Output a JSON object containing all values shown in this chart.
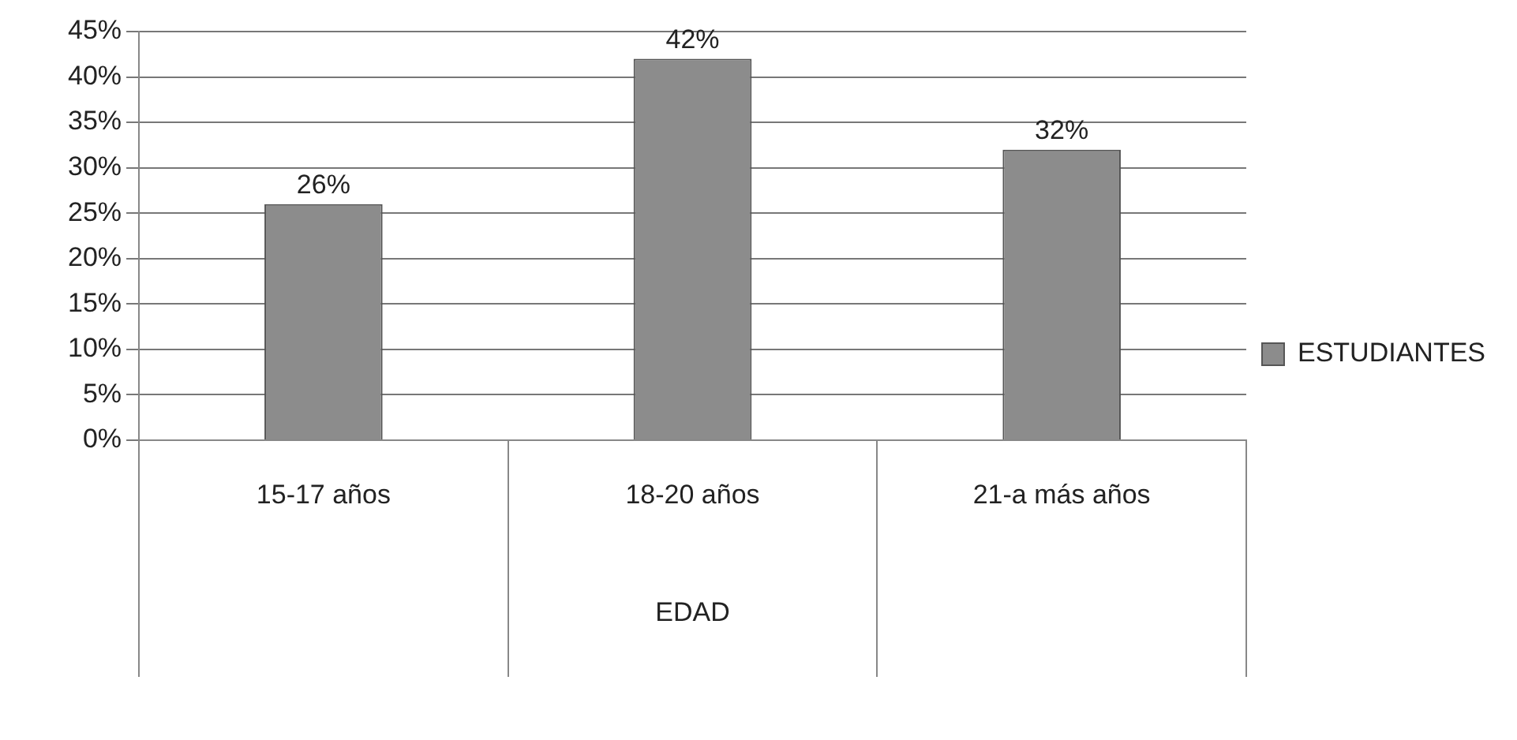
{
  "chart_data": {
    "type": "bar",
    "xlabel": "EDAD",
    "categories": [
      "15-17 años",
      "18-20 años",
      "21-a más años"
    ],
    "series": [
      {
        "name": "ESTUDIANTES",
        "color": "#8c8c8c",
        "values": [
          26,
          42,
          32
        ],
        "value_labels": [
          "26%",
          "42%",
          "32%"
        ]
      }
    ],
    "ylim": [
      0,
      45
    ],
    "yticks": [
      {
        "value": 0,
        "label": "0%"
      },
      {
        "value": 5,
        "label": "5%"
      },
      {
        "value": 10,
        "label": "10%"
      },
      {
        "value": 15,
        "label": "15%"
      },
      {
        "value": 20,
        "label": "20%"
      },
      {
        "value": 25,
        "label": "25%"
      },
      {
        "value": 30,
        "label": "30%"
      },
      {
        "value": 35,
        "label": "35%"
      },
      {
        "value": 40,
        "label": "40%"
      },
      {
        "value": 45,
        "label": "45%"
      }
    ],
    "grid": "y",
    "legend": "right"
  }
}
